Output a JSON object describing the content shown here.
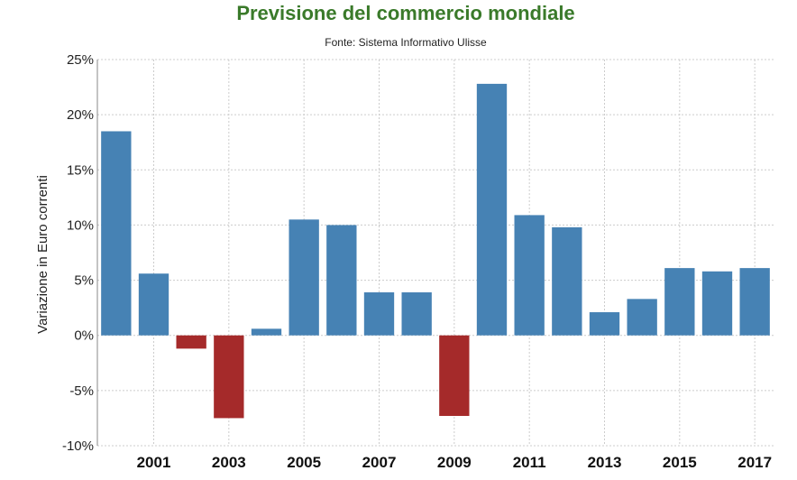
{
  "chart_data": {
    "type": "bar",
    "title": "Previsione del commercio mondiale",
    "subtitle": "Fonte: Sistema Informativo Ulisse",
    "ylabel": "Variazione in Euro correnti",
    "xlabel": "",
    "categories": [
      "2000",
      "2001",
      "2002",
      "2003",
      "2004",
      "2005",
      "2006",
      "2007",
      "2008",
      "2009",
      "2010",
      "2011",
      "2012",
      "2013",
      "2014",
      "2015",
      "2016",
      "2017"
    ],
    "values": [
      18.5,
      5.6,
      -1.2,
      -7.5,
      0.6,
      10.5,
      10.0,
      3.9,
      3.9,
      -7.3,
      22.8,
      10.9,
      9.8,
      2.1,
      3.3,
      6.1,
      5.8,
      6.1
    ],
    "x_tick_labels": [
      "2001",
      "2003",
      "2005",
      "2007",
      "2009",
      "2011",
      "2013",
      "2015",
      "2017"
    ],
    "ylim": [
      -10,
      25
    ],
    "y_ticks": [
      25,
      20,
      15,
      10,
      5,
      0,
      -5,
      -10
    ],
    "y_tick_labels": [
      "25%",
      "20%",
      "15%",
      "10%",
      "5%",
      "0%",
      "-5%",
      "-10%"
    ],
    "grid": true,
    "colors": {
      "positive": "#4682b4",
      "negative": "#a52a2a",
      "grid": "#cccccc",
      "title": "#3a7a2a"
    }
  }
}
